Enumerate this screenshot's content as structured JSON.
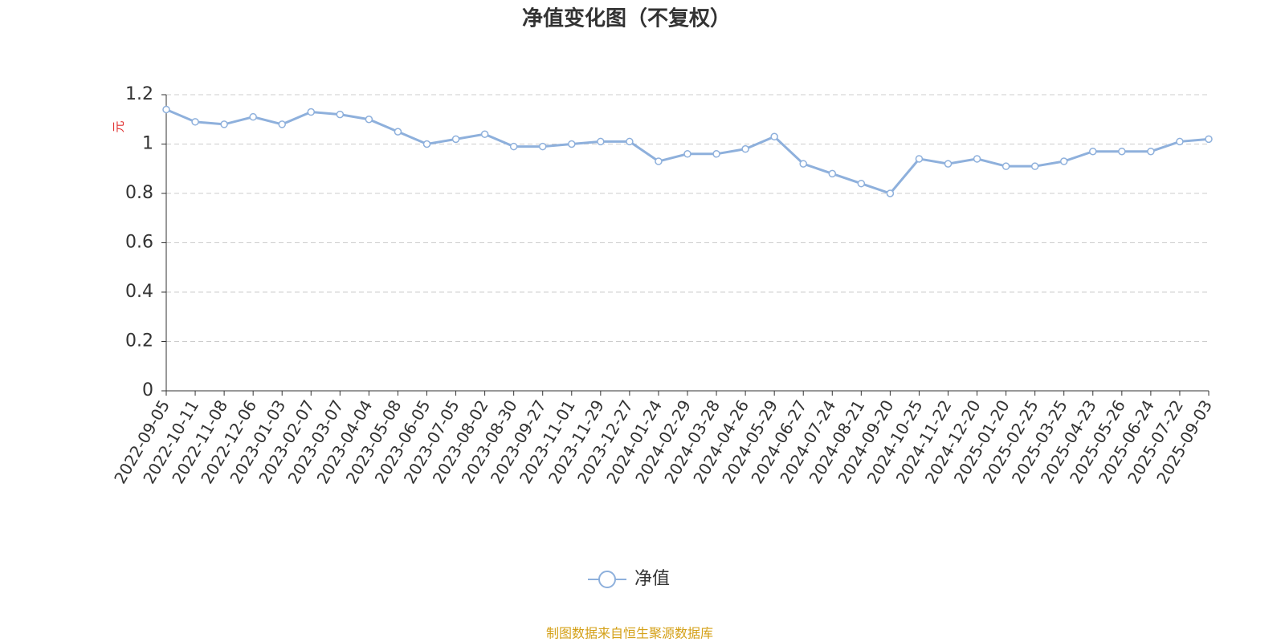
{
  "chart_data": {
    "type": "line",
    "title": "净值变化图（不复权）",
    "y_label": "元",
    "source": "制图数据来自恒生聚源数据库",
    "categories": [
      "2022-09-05",
      "2022-10-11",
      "2022-11-08",
      "2022-12-06",
      "2023-01-03",
      "2023-02-07",
      "2023-03-07",
      "2023-04-04",
      "2023-05-08",
      "2023-06-05",
      "2023-07-05",
      "2023-08-02",
      "2023-08-30",
      "2023-09-27",
      "2023-11-01",
      "2023-11-29",
      "2023-12-27",
      "2024-01-24",
      "2024-02-29",
      "2024-03-28",
      "2024-04-26",
      "2024-05-29",
      "2024-06-27",
      "2024-07-24",
      "2024-08-21",
      "2024-09-20",
      "2024-10-25",
      "2024-11-22",
      "2024-12-20",
      "2025-01-20",
      "2025-02-25",
      "2025-03-25",
      "2025-04-23",
      "2025-05-26",
      "2025-06-24",
      "2025-07-22",
      "2025-09-03"
    ],
    "series": [
      {
        "name": "净值",
        "color": "#8eb0dc",
        "values": [
          1.14,
          1.09,
          1.08,
          1.11,
          1.08,
          1.13,
          1.12,
          1.1,
          1.05,
          1.0,
          1.02,
          1.04,
          0.99,
          0.99,
          1.0,
          1.01,
          1.01,
          0.93,
          0.96,
          0.96,
          0.98,
          1.03,
          0.92,
          0.88,
          0.84,
          0.8,
          0.94,
          0.92,
          0.94,
          0.91,
          0.91,
          0.93,
          0.97,
          0.97,
          0.97,
          1.01,
          1.02
        ]
      }
    ],
    "ylim": [
      0,
      1.2
    ],
    "yticks": [
      0,
      0.2,
      0.4,
      0.6,
      0.8,
      1,
      1.2
    ],
    "grid": true
  }
}
